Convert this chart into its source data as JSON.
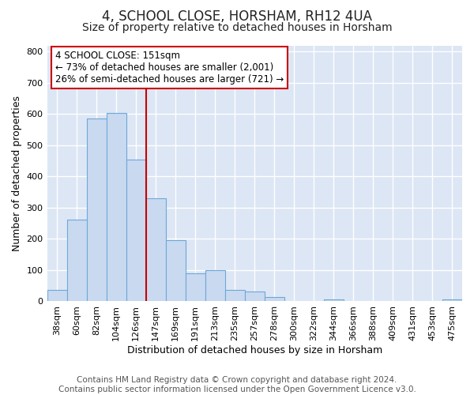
{
  "title": "4, SCHOOL CLOSE, HORSHAM, RH12 4UA",
  "subtitle": "Size of property relative to detached houses in Horsham",
  "xlabel": "Distribution of detached houses by size in Horsham",
  "ylabel": "Number of detached properties",
  "bar_labels": [
    "38sqm",
    "60sqm",
    "82sqm",
    "104sqm",
    "126sqm",
    "147sqm",
    "169sqm",
    "191sqm",
    "213sqm",
    "235sqm",
    "257sqm",
    "278sqm",
    "300sqm",
    "322sqm",
    "344sqm",
    "366sqm",
    "388sqm",
    "409sqm",
    "431sqm",
    "453sqm",
    "475sqm"
  ],
  "bar_values": [
    37,
    263,
    585,
    603,
    453,
    330,
    196,
    90,
    100,
    37,
    32,
    14,
    0,
    0,
    5,
    0,
    0,
    0,
    0,
    0,
    5
  ],
  "bar_color": "#c9d9f0",
  "bar_edge_color": "#6ea8d8",
  "ylim": [
    0,
    820
  ],
  "yticks": [
    0,
    100,
    200,
    300,
    400,
    500,
    600,
    700,
    800
  ],
  "red_line_x": 4.5,
  "red_line_color": "#cc0000",
  "annotation_title": "4 SCHOOL CLOSE: 151sqm",
  "annotation_line1": "← 73% of detached houses are smaller (2,001)",
  "annotation_line2": "26% of semi-detached houses are larger (721) →",
  "annotation_box_color": "#ffffff",
  "annotation_box_edge": "#cc0000",
  "footer_line1": "Contains HM Land Registry data © Crown copyright and database right 2024.",
  "footer_line2": "Contains public sector information licensed under the Open Government Licence v3.0.",
  "bg_color": "#ffffff",
  "plot_bg_color": "#dce6f5",
  "grid_color": "#ffffff",
  "title_fontsize": 12,
  "subtitle_fontsize": 10,
  "axis_label_fontsize": 9,
  "tick_fontsize": 8,
  "footer_fontsize": 7.5,
  "ann_fontsize": 8.5
}
